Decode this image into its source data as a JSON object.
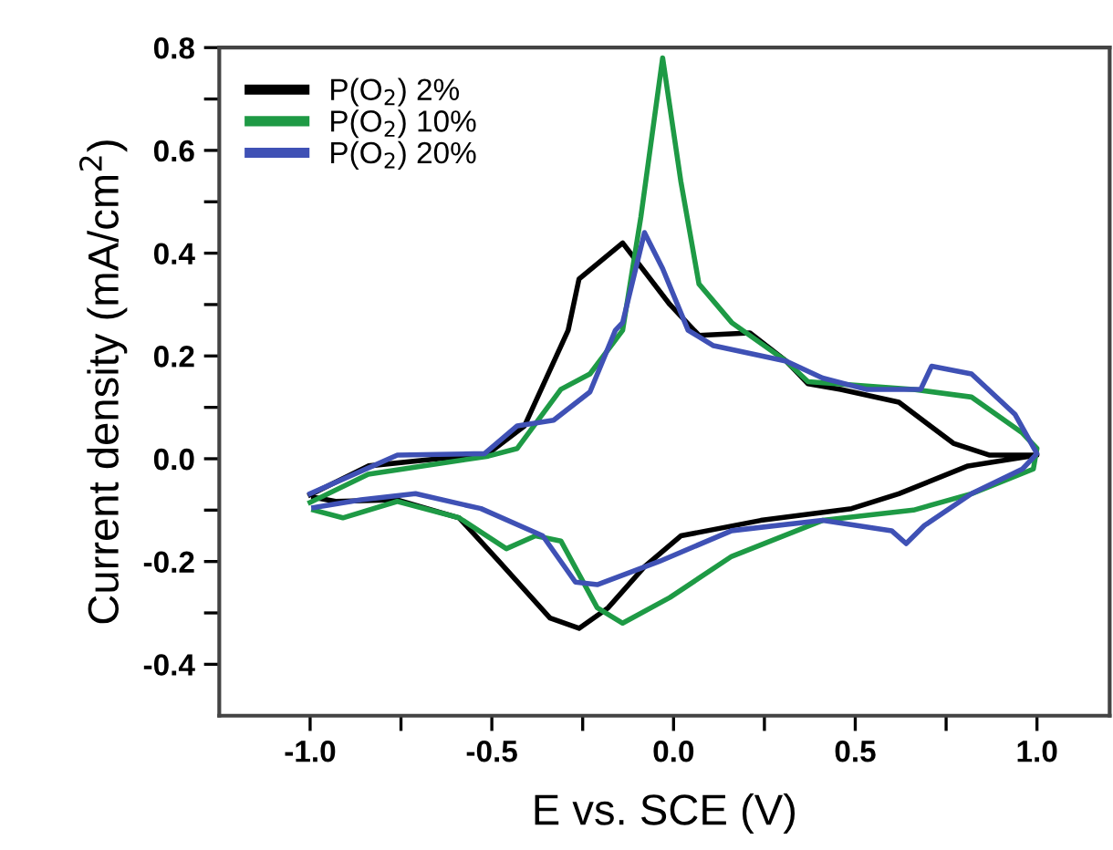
{
  "chart_data": {
    "type": "line",
    "xlabel": "E vs. SCE (V)",
    "ylabel": "Current density (mA/cm$^{2}$)",
    "xlim": [
      -1.25,
      1.2
    ],
    "ylim": [
      -0.5,
      0.8
    ],
    "xticks": [
      {
        "value": -1,
        "label": "-1.0"
      },
      {
        "value": -0.75,
        "label": null
      },
      -0.5,
      {
        "value": -0.25,
        "label": null
      },
      {
        "value": 0,
        "label": "0.0"
      },
      {
        "value": 0.25,
        "label": null
      },
      0.5,
      {
        "value": 0.75,
        "label": null
      },
      {
        "value": 1,
        "label": "1.0"
      }
    ],
    "yticks": [
      -0.4,
      {
        "value": -0.3,
        "label": null
      },
      -0.2,
      {
        "value": -0.1,
        "label": null
      },
      {
        "value": 0,
        "label": "0.0"
      },
      {
        "value": 0.1,
        "label": null
      },
      0.2,
      {
        "value": 0.3,
        "label": null
      },
      0.4,
      {
        "value": 0.5,
        "label": null
      },
      0.6,
      {
        "value": 0.7,
        "label": null
      },
      0.8
    ],
    "grid": false,
    "legend": "top left",
    "marker": "none",
    "line_style": "solid",
    "series": [
      {
        "name": "P(O$_{2}$) 2%",
        "color": "#000000",
        "x": [
          -1.0,
          -0.84,
          -0.51,
          -0.41,
          -0.29,
          -0.26,
          -0.14,
          -0.01,
          0.07,
          0.21,
          0.31,
          0.37,
          0.46,
          0.62,
          0.77,
          0.87,
          1.0,
          0.81,
          0.62,
          0.49,
          0.24,
          0.02,
          -0.08,
          -0.18,
          -0.26,
          -0.34,
          -0.48,
          -0.59,
          -0.76,
          -0.93,
          -0.99
        ],
        "values": [
          -0.07,
          -0.014,
          0.01,
          0.064,
          0.25,
          0.35,
          0.42,
          0.3,
          0.24,
          0.245,
          0.19,
          0.146,
          0.135,
          0.11,
          0.03,
          0.007,
          0.007,
          -0.014,
          -0.068,
          -0.097,
          -0.12,
          -0.15,
          -0.21,
          -0.29,
          -0.33,
          -0.31,
          -0.2,
          -0.115,
          -0.08,
          -0.083,
          -0.075
        ]
      },
      {
        "name": "P(O$_{2}$) 10%",
        "color": "#1e9a45",
        "x": [
          -1.0,
          -0.84,
          -0.51,
          -0.43,
          -0.31,
          -0.23,
          -0.14,
          -0.09,
          -0.03,
          0.02,
          0.07,
          0.16,
          0.31,
          0.37,
          0.66,
          0.82,
          0.96,
          1.0,
          0.99,
          0.82,
          0.66,
          0.41,
          0.16,
          -0.01,
          -0.14,
          -0.21,
          -0.31,
          -0.38,
          -0.46,
          -0.59,
          -0.76,
          -0.91,
          -0.99
        ],
        "values": [
          -0.085,
          -0.03,
          0.005,
          0.02,
          0.135,
          0.165,
          0.25,
          0.47,
          0.78,
          0.54,
          0.34,
          0.265,
          0.19,
          0.15,
          0.135,
          0.12,
          0.05,
          0.02,
          -0.02,
          -0.068,
          -0.1,
          -0.12,
          -0.19,
          -0.27,
          -0.32,
          -0.29,
          -0.16,
          -0.15,
          -0.175,
          -0.115,
          -0.083,
          -0.115,
          -0.1
        ]
      },
      {
        "name": "P(O$_{2}$) 20%",
        "color": "#3f51b5",
        "x": [
          -1.0,
          -0.76,
          -0.52,
          -0.43,
          -0.33,
          -0.23,
          -0.16,
          -0.14,
          -0.08,
          -0.03,
          0.04,
          0.11,
          0.31,
          0.41,
          0.53,
          0.68,
          0.71,
          0.82,
          0.94,
          1.0,
          0.96,
          0.82,
          0.69,
          0.64,
          0.6,
          0.41,
          0.16,
          -0.04,
          -0.21,
          -0.27,
          -0.36,
          -0.53,
          -0.71,
          -0.86,
          -0.99
        ],
        "values": [
          -0.068,
          0.007,
          0.01,
          0.064,
          0.075,
          0.13,
          0.25,
          0.265,
          0.44,
          0.37,
          0.25,
          0.22,
          0.19,
          0.157,
          0.135,
          0.135,
          0.18,
          0.165,
          0.086,
          0.01,
          -0.02,
          -0.068,
          -0.13,
          -0.165,
          -0.14,
          -0.12,
          -0.14,
          -0.2,
          -0.245,
          -0.24,
          -0.15,
          -0.097,
          -0.068,
          -0.08,
          -0.095
        ]
      }
    ]
  }
}
